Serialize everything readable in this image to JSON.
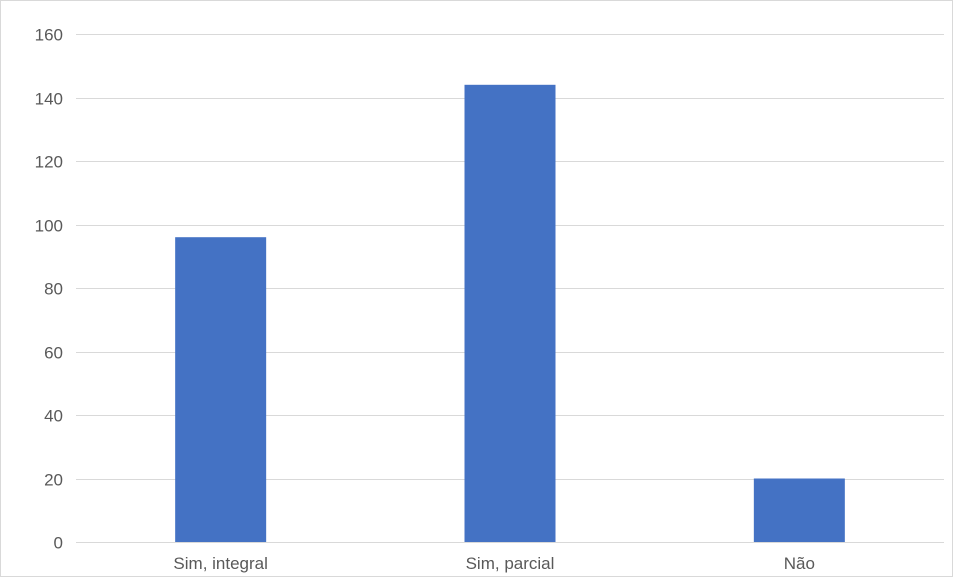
{
  "chart_data": {
    "type": "bar",
    "categories": [
      "Sim, integral",
      "Sim, parcial",
      "Não"
    ],
    "values": [
      96,
      144,
      20
    ],
    "ylim": [
      0,
      160
    ],
    "yticks": [
      0,
      20,
      40,
      60,
      80,
      100,
      120,
      140,
      160
    ],
    "grid": true,
    "legend": "none",
    "bar_color": "#4472c4",
    "grid_color": "#d9d9d9",
    "label_color": "#595959"
  }
}
